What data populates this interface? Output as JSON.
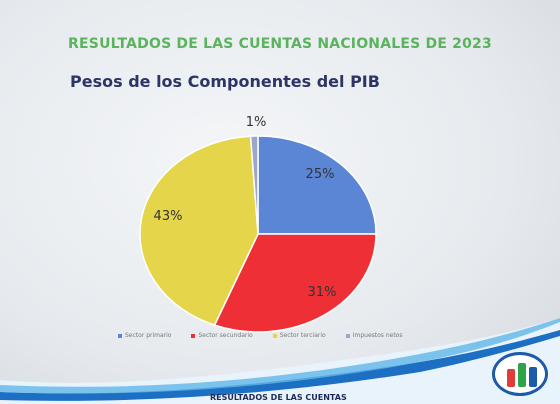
{
  "slide": {
    "banner_title": "RESULTADOS DE LAS CUENTAS NACIONALES DE 2023",
    "footer_text": "RESULTADOS DE LAS CUENTAS"
  },
  "chart_data": {
    "type": "pie",
    "title": "Pesos de los Componentes del PIB",
    "slices": [
      {
        "label": "Sector primario",
        "value": 25,
        "display": "25%",
        "color": "#5b86d6"
      },
      {
        "label": "Sector secundario",
        "value": 31,
        "display": "31%",
        "color": "#ee2f36"
      },
      {
        "label": "Sector terciario",
        "value": 43,
        "display": "43%",
        "color": "#e5d54a"
      },
      {
        "label": "Impuestos netos",
        "value": 1,
        "display": "1%",
        "color": "#9aa7c9"
      }
    ],
    "legend_position": "bottom"
  },
  "colors": {
    "banner": "#5bb35e",
    "subtitle": "#2c3566",
    "wave": "#1d6fc4"
  }
}
